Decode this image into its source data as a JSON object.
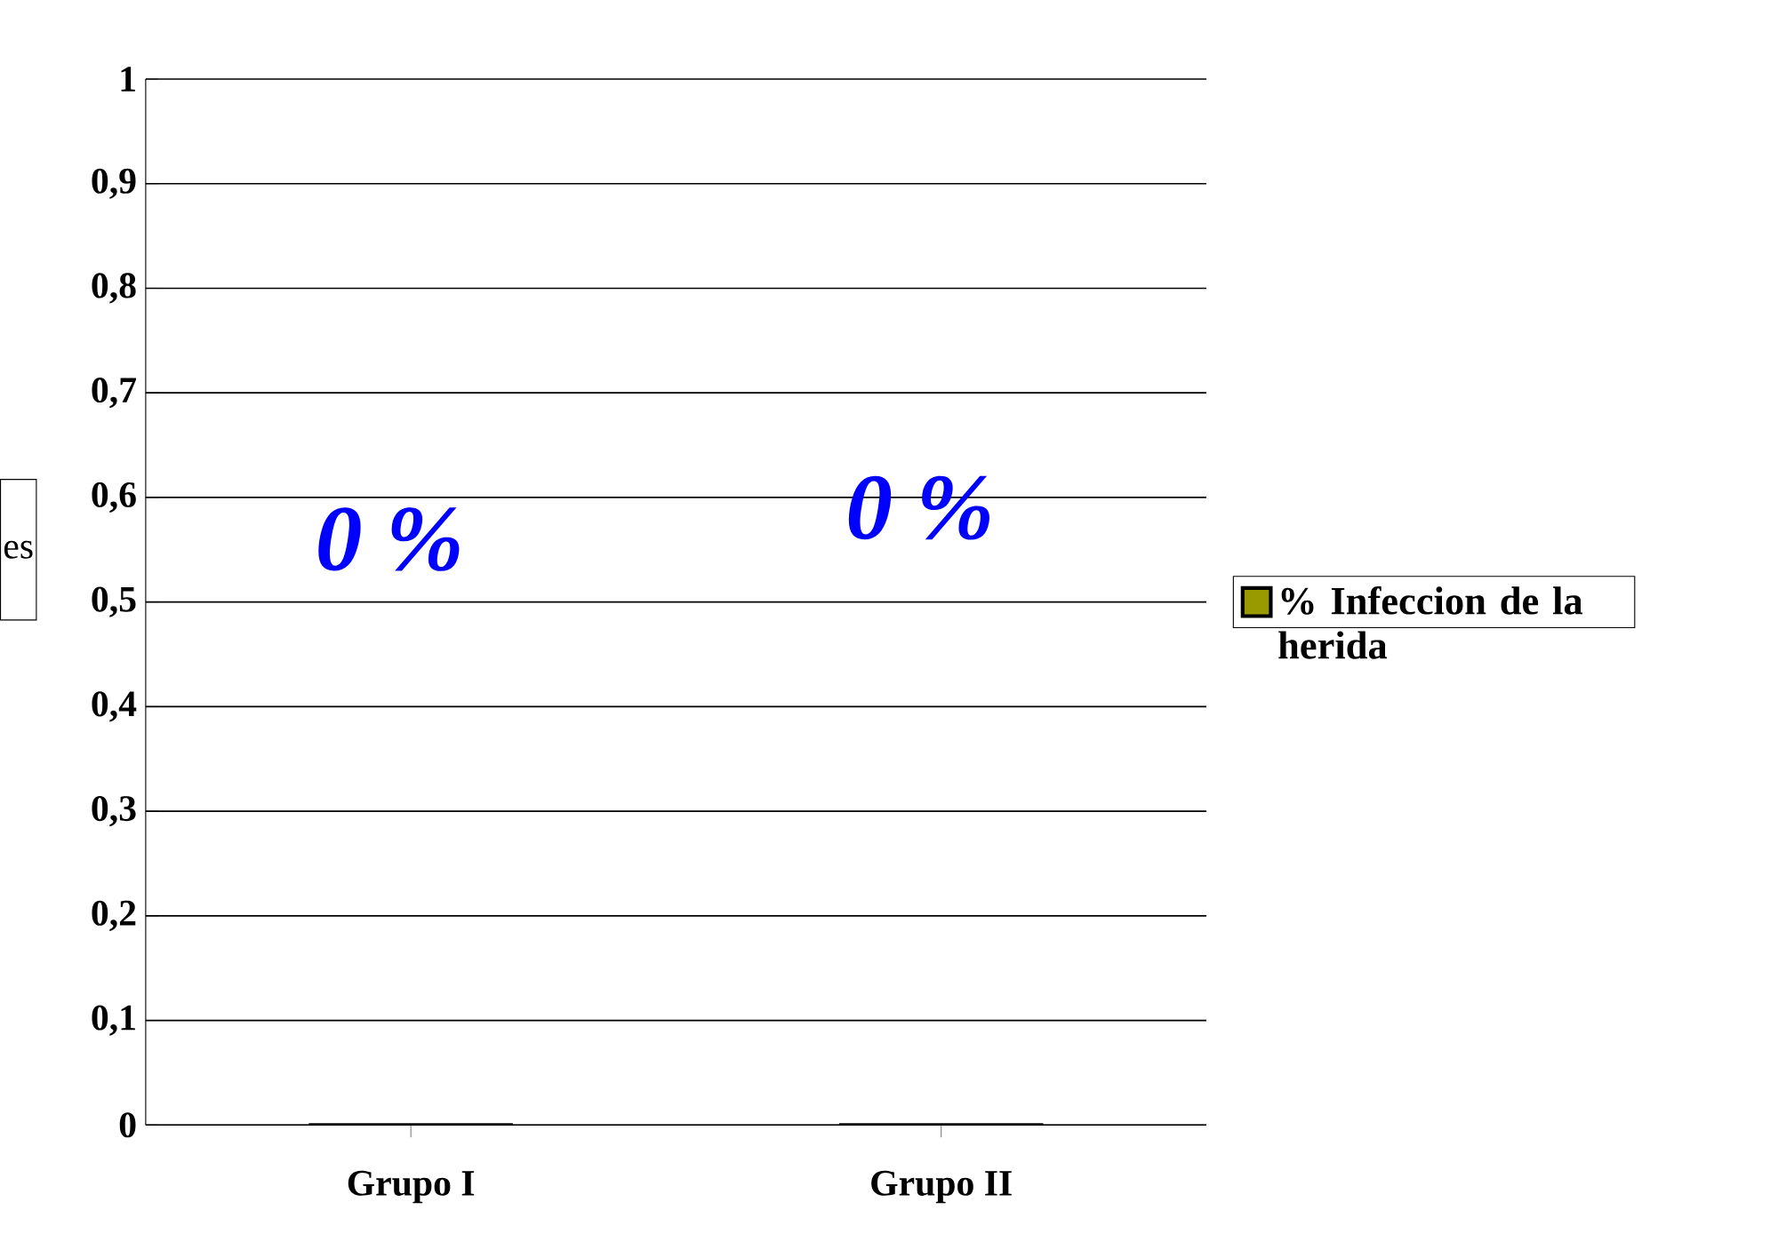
{
  "chart_data": {
    "type": "bar",
    "ylabel": "es",
    "categories": [
      "Grupo I",
      "Grupo II"
    ],
    "series": [
      {
        "name": "% Infeccion de la herida",
        "color": "#999900",
        "values": [
          0,
          0
        ]
      }
    ],
    "ylim": [
      0,
      1
    ],
    "yticks": [
      0,
      {
        "value": 0.1,
        "label": "0,1"
      },
      {
        "value": 0.2,
        "label": "0,2"
      },
      {
        "value": 0.3,
        "label": "0,3"
      },
      {
        "value": 0.4,
        "label": "0,4"
      },
      {
        "value": 0.5,
        "label": "0,5"
      },
      {
        "value": 0.6,
        "label": "0,6"
      },
      {
        "value": 0.7,
        "label": "0,7"
      },
      {
        "value": 0.8,
        "label": "0,8"
      },
      {
        "value": 0.9,
        "label": "0,9"
      },
      1
    ],
    "grid": "y",
    "legend": "right",
    "annotations": [
      "0 %",
      "0 %"
    ]
  }
}
